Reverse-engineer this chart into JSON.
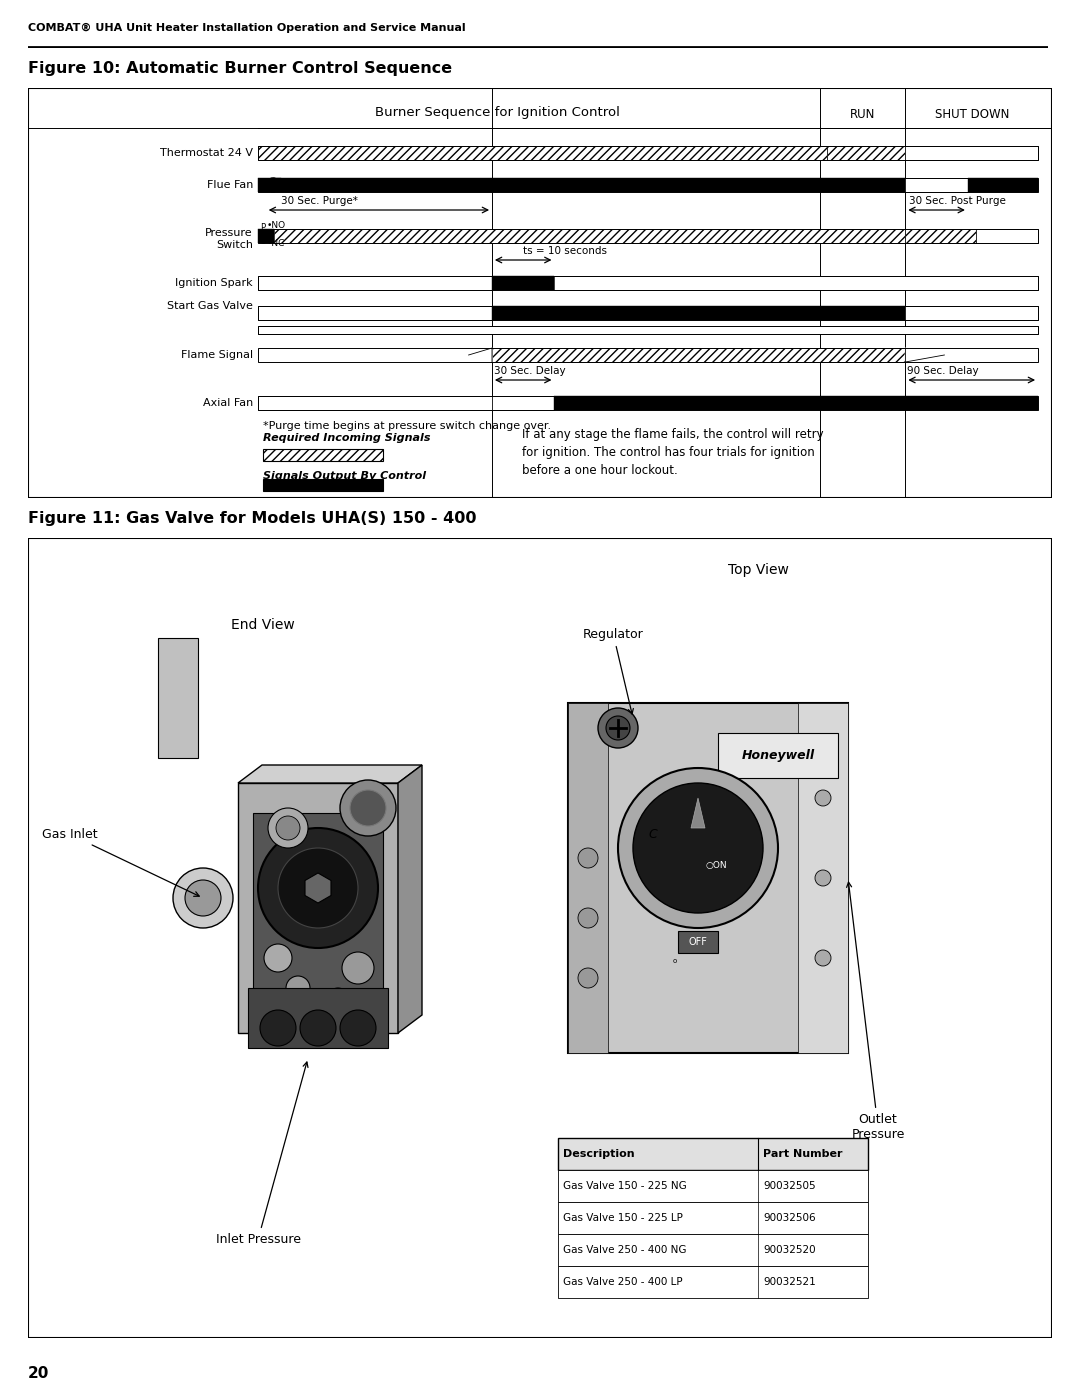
{
  "page_title": "COMBAT® UHA Unit Heater Installation Operation and Service Manual",
  "fig10_title": "Figure 10: Automatic Burner Control Sequence",
  "fig11_title": "Figure 11: Gas Valve for Models UHA(S) 150 - 400",
  "page_number": "20",
  "burner_title": "Burner Sequence for Ignition Control",
  "run_label": "RUN",
  "shutdown_label": "SHUT DOWN",
  "row_labels": [
    "Thermostat 24 V",
    "Flue Fan",
    "Pressure\nSwitch",
    "Ignition Spark",
    "Start Gas Valve",
    "Flame Signal",
    "Axial Fan"
  ],
  "purge_label": "30 Sec. Purge*",
  "post_purge_label": "30 Sec. Post Purge",
  "ts_label": "ts = 10 seconds",
  "delay30_label": "30 Sec. Delay",
  "delay90_label": "90 Sec. Delay",
  "purge_note": "*Purge time begins at pressure switch change over.",
  "req_signals": "Required Incoming Signals",
  "out_signals": "Signals Output By Control",
  "text_block": "If at any stage the flame fails, the control will retry\nfor ignition. The control has four trials for ignition\nbefore a one hour lockout.",
  "table_headers": [
    "Description",
    "Part Number"
  ],
  "table_rows": [
    [
      "Gas Valve 150 - 225 NG",
      "90032505"
    ],
    [
      "Gas Valve 150 - 225 LP",
      "90032506"
    ],
    [
      "Gas Valve 250 - 400 NG",
      "90032520"
    ],
    [
      "Gas Valve 250 - 400 LP",
      "90032521"
    ]
  ],
  "top_view_label": "Top View",
  "end_view_label": "End View",
  "gas_inlet_label": "Gas Inlet",
  "inlet_pressure_label": "Inlet Pressure",
  "regulator_label": "Regulator",
  "outlet_pressure_label": "Outlet\nPressure",
  "bg_color": "#ffffff"
}
